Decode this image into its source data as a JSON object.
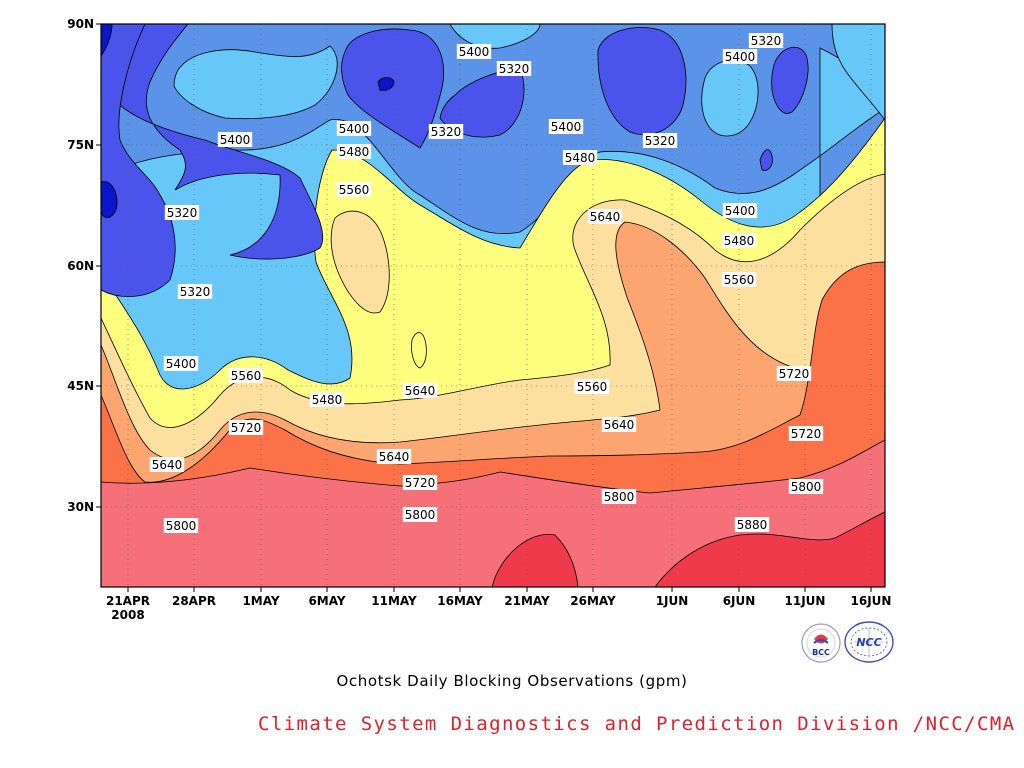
{
  "chart_data": {
    "type": "heatmap",
    "title": "Ochotsk Daily Blocking Observations (gpm)",
    "xlabel": "",
    "ylabel": "",
    "x_ticks": [
      "21APR",
      "28APR",
      "1MAY",
      "6MAY",
      "11MAY",
      "16MAY",
      "21MAY",
      "26MAY",
      "1JUN",
      "6JUN",
      "11JUN",
      "16JUN"
    ],
    "x_year_label": "2008",
    "y_ticks": [
      "30N",
      "45N",
      "60N",
      "75N",
      "90N"
    ],
    "y_tick_values": [
      30,
      45,
      60,
      75,
      90
    ],
    "xlim": [
      "20APR",
      "17JUN"
    ],
    "ylim": [
      20,
      90
    ],
    "grid": true,
    "contour_levels": [
      5240,
      5320,
      5400,
      5480,
      5560,
      5640,
      5720,
      5800,
      5880
    ],
    "fill_colors": [
      "#0a14c8",
      "#4b54ea",
      "#5a93e8",
      "#66c7f8",
      "#fdfd7e",
      "#fde0a0",
      "#fca571",
      "#fb7148",
      "#f6707a",
      "#ee3a4a"
    ],
    "contour_labels": [
      {
        "text": "5400"
      },
      {
        "text": "5320"
      },
      {
        "text": "5400"
      },
      {
        "text": "5320"
      },
      {
        "text": "5400"
      },
      {
        "text": "5400"
      },
      {
        "text": "5320"
      },
      {
        "text": "5320"
      },
      {
        "text": "5400"
      },
      {
        "text": "5480"
      },
      {
        "text": "5320"
      },
      {
        "text": "5560"
      },
      {
        "text": "5480"
      },
      {
        "text": "5640"
      },
      {
        "text": "5400"
      },
      {
        "text": "5320"
      },
      {
        "text": "5480"
      },
      {
        "text": "5560"
      },
      {
        "text": "5400"
      },
      {
        "text": "5560"
      },
      {
        "text": "5640"
      },
      {
        "text": "5480"
      },
      {
        "text": "5560"
      },
      {
        "text": "5560"
      },
      {
        "text": "5720"
      },
      {
        "text": "5640"
      },
      {
        "text": "5640"
      },
      {
        "text": "5640"
      },
      {
        "text": "5720"
      },
      {
        "text": "5720"
      },
      {
        "text": "5720"
      },
      {
        "text": "5800"
      },
      {
        "text": "5800"
      },
      {
        "text": "5800"
      },
      {
        "text": "5800"
      },
      {
        "text": "5880"
      }
    ]
  },
  "footer": {
    "title": "Ochotsk Daily Blocking Observations (gpm)",
    "credit": "Climate System Diagnostics and Prediction Division /NCC/CMA",
    "logo_left_text": "BCC",
    "logo_right_text": "NCC"
  }
}
